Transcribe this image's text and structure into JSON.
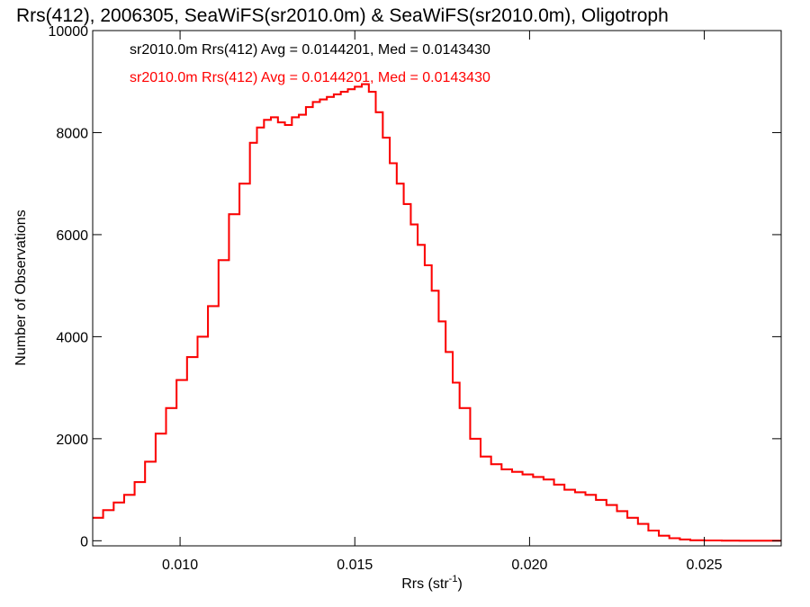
{
  "chart_data": {
    "type": "line",
    "title": "Rrs(412), 2006305, SeaWiFS(sr2010.0m) & SeaWiFS(sr2010.0m), Oligotroph",
    "xlabel_base": "Rrs (str",
    "xlabel_sup": "-1",
    "xlabel_tail": ")",
    "ylabel": "Number of Observations",
    "xlim": [
      0.0075,
      0.0272
    ],
    "ylim": [
      -100,
      10000
    ],
    "x_ticks": [
      {
        "value": 0.01,
        "label": "0.010"
      },
      {
        "value": 0.015,
        "label": "0.015"
      },
      {
        "value": 0.02,
        "label": "0.020"
      },
      {
        "value": 0.025,
        "label": "0.025"
      }
    ],
    "y_ticks": [
      {
        "value": 0,
        "label": "0"
      },
      {
        "value": 2000,
        "label": "2000"
      },
      {
        "value": 4000,
        "label": "4000"
      },
      {
        "value": 6000,
        "label": "6000"
      },
      {
        "value": 8000,
        "label": "8000"
      },
      {
        "value": 10000,
        "label": "10000"
      }
    ],
    "annotations": [
      {
        "text": "sr2010.0m Rrs(412) Avg = 0.0144201, Med = 0.0143430",
        "color": "#000000"
      },
      {
        "text": "sr2010.0m Rrs(412) Avg = 0.0144201, Med = 0.0143430",
        "color": "#ff0000"
      }
    ],
    "series": [
      {
        "color": "#000000",
        "x": [
          0.0075,
          0.0078,
          0.0081,
          0.0084,
          0.0087,
          0.009,
          0.0093,
          0.0096,
          0.0099,
          0.0102,
          0.0105,
          0.0108,
          0.0111,
          0.0114,
          0.0117,
          0.012,
          0.0122,
          0.0124,
          0.0126,
          0.0128,
          0.013,
          0.0132,
          0.0134,
          0.0136,
          0.0138,
          0.014,
          0.0142,
          0.0144,
          0.0146,
          0.0148,
          0.015,
          0.0152,
          0.0154,
          0.0156,
          0.0158,
          0.016,
          0.0162,
          0.0164,
          0.0166,
          0.0168,
          0.017,
          0.0172,
          0.0174,
          0.0176,
          0.0178,
          0.018,
          0.0183,
          0.0186,
          0.0189,
          0.0192,
          0.0195,
          0.0198,
          0.0201,
          0.0204,
          0.0207,
          0.021,
          0.0213,
          0.0216,
          0.0219,
          0.0222,
          0.0225,
          0.0228,
          0.0231,
          0.0234,
          0.0237,
          0.024,
          0.0243,
          0.0246,
          0.025,
          0.0255,
          0.026,
          0.0265,
          0.0272
        ],
        "y": [
          450,
          600,
          750,
          900,
          1150,
          1550,
          2100,
          2600,
          3150,
          3600,
          4000,
          4600,
          5500,
          6400,
          7000,
          7800,
          8100,
          8250,
          8300,
          8200,
          8150,
          8300,
          8350,
          8500,
          8600,
          8650,
          8700,
          8750,
          8800,
          8850,
          8900,
          8950,
          8800,
          8400,
          7900,
          7400,
          7000,
          6600,
          6200,
          5800,
          5400,
          4900,
          4300,
          3700,
          3100,
          2600,
          2000,
          1650,
          1500,
          1400,
          1350,
          1300,
          1250,
          1200,
          1100,
          1000,
          950,
          900,
          800,
          700,
          580,
          450,
          330,
          200,
          100,
          50,
          25,
          10,
          5,
          2,
          1,
          0,
          0
        ]
      },
      {
        "color": "#ff0000",
        "x": [
          0.0075,
          0.0078,
          0.0081,
          0.0084,
          0.0087,
          0.009,
          0.0093,
          0.0096,
          0.0099,
          0.0102,
          0.0105,
          0.0108,
          0.0111,
          0.0114,
          0.0117,
          0.012,
          0.0122,
          0.0124,
          0.0126,
          0.0128,
          0.013,
          0.0132,
          0.0134,
          0.0136,
          0.0138,
          0.014,
          0.0142,
          0.0144,
          0.0146,
          0.0148,
          0.015,
          0.0152,
          0.0154,
          0.0156,
          0.0158,
          0.016,
          0.0162,
          0.0164,
          0.0166,
          0.0168,
          0.017,
          0.0172,
          0.0174,
          0.0176,
          0.0178,
          0.018,
          0.0183,
          0.0186,
          0.0189,
          0.0192,
          0.0195,
          0.0198,
          0.0201,
          0.0204,
          0.0207,
          0.021,
          0.0213,
          0.0216,
          0.0219,
          0.0222,
          0.0225,
          0.0228,
          0.0231,
          0.0234,
          0.0237,
          0.024,
          0.0243,
          0.0246,
          0.025,
          0.0255,
          0.026,
          0.0265,
          0.0272
        ],
        "y": [
          450,
          600,
          750,
          900,
          1150,
          1550,
          2100,
          2600,
          3150,
          3600,
          4000,
          4600,
          5500,
          6400,
          7000,
          7800,
          8100,
          8250,
          8300,
          8200,
          8150,
          8300,
          8350,
          8500,
          8600,
          8650,
          8700,
          8750,
          8800,
          8850,
          8900,
          8950,
          8800,
          8400,
          7900,
          7400,
          7000,
          6600,
          6200,
          5800,
          5400,
          4900,
          4300,
          3700,
          3100,
          2600,
          2000,
          1650,
          1500,
          1400,
          1350,
          1300,
          1250,
          1200,
          1100,
          1000,
          950,
          900,
          800,
          700,
          580,
          450,
          330,
          200,
          100,
          50,
          25,
          10,
          5,
          2,
          1,
          0,
          0
        ]
      }
    ]
  }
}
